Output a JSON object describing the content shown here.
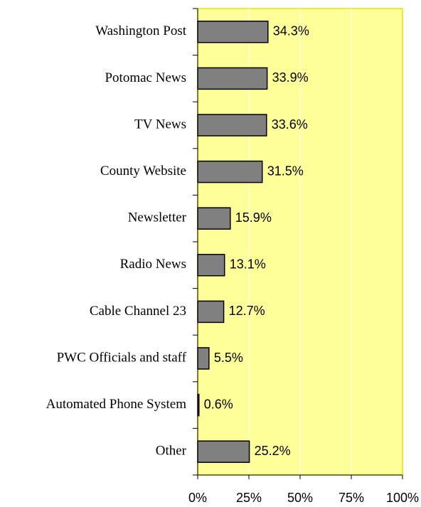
{
  "chart_data": {
    "type": "bar",
    "orientation": "horizontal",
    "categories": [
      "Washington Post",
      "Potomac News",
      "TV News",
      "County Website",
      "Newsletter",
      "Radio News",
      "Cable Channel 23",
      "PWC Officials and staff",
      "Automated Phone System",
      "Other"
    ],
    "values": [
      34.3,
      33.9,
      33.6,
      31.5,
      15.9,
      13.1,
      12.7,
      5.5,
      0.6,
      25.2
    ],
    "value_labels": [
      "34.3%",
      "33.9%",
      "33.6%",
      "31.5%",
      "15.9%",
      "13.1%",
      "12.7%",
      "5.5%",
      "0.6%",
      "25.2%"
    ],
    "color": "#808080",
    "background": "#ffff99",
    "xlim": [
      0,
      100
    ],
    "xticks": [
      {
        "value": 0,
        "label": "0%"
      },
      {
        "value": 25,
        "label": "25%"
      },
      {
        "value": 50,
        "label": "50%"
      },
      {
        "value": 75,
        "label": "75%"
      },
      {
        "value": 100,
        "label": "100%"
      }
    ],
    "grid": true
  }
}
